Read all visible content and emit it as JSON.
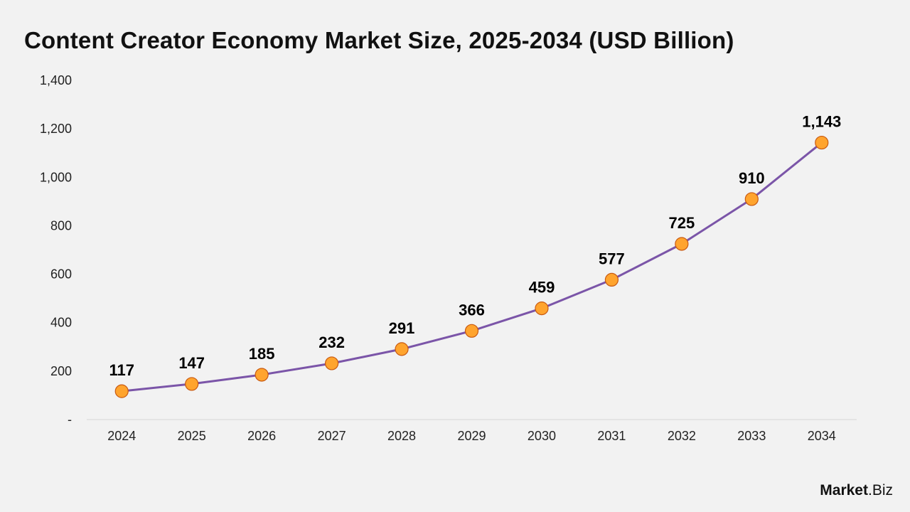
{
  "title": "Content Creator Economy Market Size, 2025-2034 (USD Billion)",
  "brand": {
    "main": "Market",
    "suffix": ".Biz"
  },
  "colors": {
    "background": "#f2f2f2",
    "line": "#7b55a8",
    "marker_fill": "#ffa42e",
    "marker_stroke": "#c85a12",
    "axis": "#d6d6d6",
    "text": "#111111"
  },
  "chart_data": {
    "type": "line",
    "x": [
      "2024",
      "2025",
      "2026",
      "2027",
      "2028",
      "2029",
      "2030",
      "2031",
      "2032",
      "2033",
      "2034"
    ],
    "series": [
      {
        "values": [
          117,
          147,
          185,
          232,
          291,
          366,
          459,
          577,
          725,
          910,
          1143
        ],
        "labels": [
          "117",
          "147",
          "185",
          "232",
          "291",
          "366",
          "459",
          "577",
          "725",
          "910",
          "1,143"
        ]
      }
    ],
    "y_ticks": [
      0,
      200,
      400,
      600,
      800,
      1000,
      1200,
      1400
    ],
    "y_tick_labels": [
      "-",
      "200",
      "400",
      "600",
      "800",
      "1,000",
      "1,200",
      "1,400"
    ],
    "ylim": [
      0,
      1400
    ],
    "grid": false,
    "markers": true,
    "data_labels": true,
    "legend": "none"
  }
}
